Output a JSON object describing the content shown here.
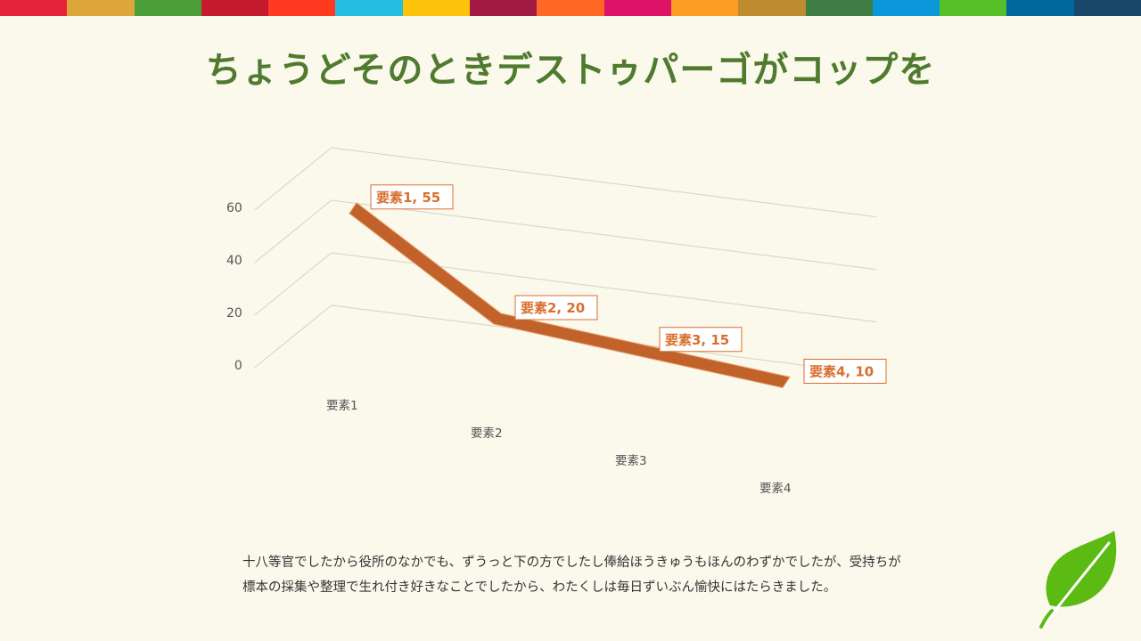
{
  "slide": {
    "title": "ちょうどそのときデストゥパーゴがコップを",
    "body_lines": [
      "十八等官でしたから役所のなかでも、ずうっと下の方でしたし俸給ほうきゅうもほんのわずかでしたが、受持ちが",
      "標本の採集や整理で生れ付き好きなことでしたから、わたくしは毎日ずいぶん愉快にはたらきました。"
    ],
    "top_bar_colors": [
      "#e5243b",
      "#dda63a",
      "#4c9f38",
      "#c5192d",
      "#ff3a21",
      "#26bde2",
      "#fcc30b",
      "#a21942",
      "#fd6925",
      "#dd1367",
      "#fd9d24",
      "#bf8b2e",
      "#3f7e44",
      "#0a97d9",
      "#56c02b",
      "#00689d",
      "#19486a"
    ],
    "colors": {
      "line": "#c0622a",
      "label": "#d86f2e",
      "title": "#4f7b2e",
      "leaf": "#5cbb13"
    },
    "icons": {
      "leaf": "leaf-icon"
    }
  },
  "chart_data": {
    "type": "line",
    "style": "3d",
    "categories": [
      "要素1",
      "要素2",
      "要素3",
      "要素4"
    ],
    "series": [
      {
        "values": [
          55,
          20,
          15,
          10
        ]
      }
    ],
    "data_labels": [
      "要素1, 55",
      "要素2, 20",
      "要素3, 15",
      "要素4, 10"
    ],
    "yticks": [
      0,
      20,
      40,
      60
    ],
    "ylim": [
      0,
      70
    ],
    "grid": true,
    "legend": "none"
  }
}
